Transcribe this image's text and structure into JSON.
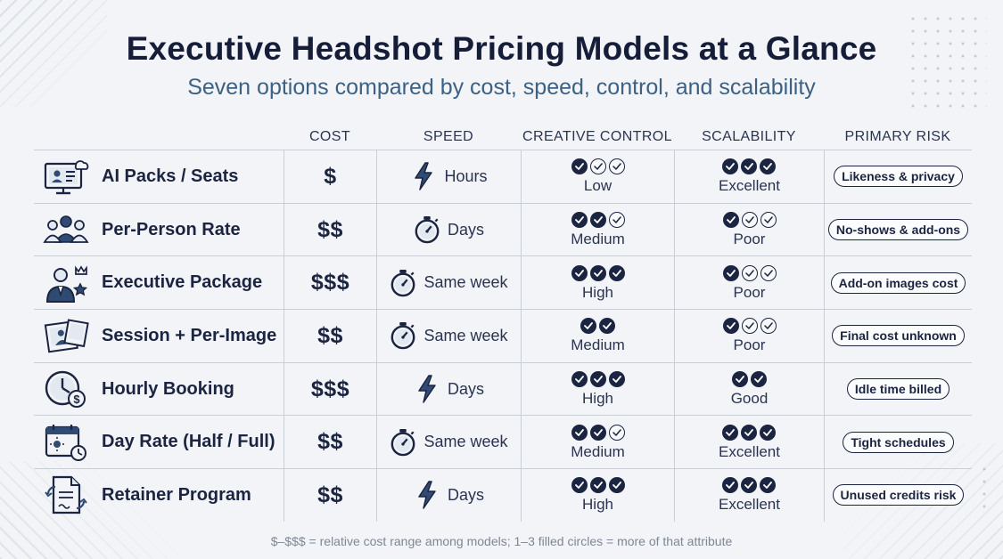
{
  "title": "Executive Headshot Pricing Models at a Glance",
  "subtitle": "Seven options compared by cost, speed, control, and scalability",
  "columns": [
    "COST",
    "SPEED",
    "CREATIVE CONTROL",
    "SCALABILITY",
    "PRIMARY RISK"
  ],
  "rows": [
    {
      "model": "AI Packs / Seats",
      "icon": "ai-monitor-cloud-icon",
      "cost": "$",
      "speed_icon": "lightning-icon",
      "speed": "Hours",
      "control_filled": 1,
      "control": "Low",
      "scale_filled": 3,
      "scale": "Excellent",
      "risk": "Likeness & privacy"
    },
    {
      "model": "Per-Person Rate",
      "icon": "people-group-icon",
      "cost": "$$",
      "speed_icon": "stopwatch-icon",
      "speed": "Days",
      "control_filled": 2,
      "control": "Medium",
      "scale_filled": 1,
      "scale": "Poor",
      "risk": "No-shows & add-ons"
    },
    {
      "model": "Executive Package",
      "icon": "executive-crown-icon",
      "cost": "$$$",
      "speed_icon": "stopwatch-icon",
      "speed": "Same week",
      "control_filled": 3,
      "control": "High",
      "scale_filled": 1,
      "scale": "Poor",
      "risk": "Add-on images cost"
    },
    {
      "model": "Session + Per-Image",
      "icon": "photo-prints-icon",
      "cost": "$$",
      "speed_icon": "stopwatch-icon",
      "speed": "Same week",
      "control_filled": 2,
      "control_total": 2,
      "control": "Medium",
      "scale_filled": 1,
      "scale": "Poor",
      "risk": "Final cost unknown"
    },
    {
      "model": "Hourly Booking",
      "icon": "clock-dollar-icon",
      "cost": "$$$",
      "speed_icon": "lightning-icon",
      "speed": "Days",
      "control_filled": 3,
      "control": "High",
      "scale_filled": 2,
      "scale_total": 2,
      "scale": "Good",
      "risk": "Idle time billed"
    },
    {
      "model": "Day Rate (Half / Full)",
      "icon": "calendar-sun-icon",
      "cost": "$$",
      "speed_icon": "stopwatch-icon",
      "speed": "Same week",
      "control_filled": 2,
      "control": "Medium",
      "scale_filled": 3,
      "scale": "Excellent",
      "risk": "Tight schedules"
    },
    {
      "model": "Retainer Program",
      "icon": "document-refresh-icon",
      "cost": "$$",
      "speed_icon": "lightning-icon",
      "speed": "Days",
      "control_filled": 3,
      "control": "High",
      "scale_filled": 3,
      "scale": "Excellent",
      "risk": "Unused credits risk"
    }
  ],
  "footnote": "$–$$$ = relative cost range among models; 1–3 filled circles = more of that attribute",
  "colors": {
    "ink": "#1b2440",
    "subtitle": "#3d6183",
    "background": "#f2f4f7",
    "rule": "#c8cfd9"
  }
}
